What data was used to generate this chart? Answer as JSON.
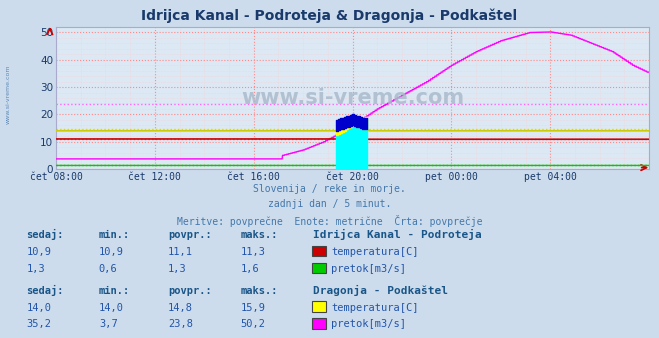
{
  "title": "Idrijca Kanal - Podroteja & Dragonja - Podkaštel",
  "title_color": "#1a3a6b",
  "bg_color": "#ccdcec",
  "plot_bg_color": "#dce8f4",
  "subtitle_lines": [
    "Slovenija / reke in morje.",
    "zadnji dan / 5 minut.",
    "Meritve: povprečne  Enote: metrične  Črta: povprečje"
  ],
  "subtitle_color": "#4477aa",
  "watermark": "www.si-vreme.com",
  "watermark_color": "#aabbcc",
  "xlabel_color": "#1a3a6b",
  "ylabel_color": "#1a3a6b",
  "xtick_labels": [
    "čet 08:00",
    "čet 12:00",
    "čet 16:00",
    "čet 20:00",
    "pet 00:00",
    "pet 04:00"
  ],
  "xtick_positions": [
    0,
    240,
    480,
    720,
    960,
    1200
  ],
  "ytick_labels": [
    "0",
    "10",
    "20",
    "30",
    "40",
    "50"
  ],
  "ytick_positions": [
    0,
    10,
    20,
    30,
    40,
    50
  ],
  "ylim": [
    0,
    52
  ],
  "xlim": [
    0,
    1440
  ],
  "grid_color": "#ff8888",
  "grid_minor_color": "#ffcccc",
  "idrijca_temp_color": "#cc0000",
  "idrijca_temp_avg": 11.1,
  "idrijca_flow_color": "#00cc00",
  "idrijca_flow_avg": 1.3,
  "dragonja_temp_color": "#cccc00",
  "dragonja_temp_avg": 14.8,
  "dragonja_flow_color": "#ff00ff",
  "dragonja_flow_avg": 23.8,
  "idrijca_temp_avg_color": "#ff6666",
  "idrijca_flow_avg_color": "#00bb00",
  "dragonja_temp_avg_color": "#dddd00",
  "dragonja_flow_avg_color": "#ff66ff",
  "fill_cyan_color": "#00ffff",
  "fill_blue_color": "#0000cc",
  "fill_yellow_color": "#ffff00",
  "table_header_color": "#1a5588",
  "table_value_color": "#2255aa",
  "station1_name": "Idrijca Kanal - Podroteja",
  "station2_name": "Dragonja - Podkaštel",
  "s1_sedaj": [
    "10,9",
    "1,3"
  ],
  "s1_min": [
    "10,9",
    "0,6"
  ],
  "s1_povpr": [
    "11,1",
    "1,3"
  ],
  "s1_maks": [
    "11,3",
    "1,6"
  ],
  "s1_labels": [
    "temperatura[C]",
    "pretok[m3/s]"
  ],
  "s1_colors": [
    "#cc0000",
    "#00cc00"
  ],
  "s2_sedaj": [
    "14,0",
    "35,2"
  ],
  "s2_min": [
    "14,0",
    "3,7"
  ],
  "s2_povpr": [
    "14,8",
    "23,8"
  ],
  "s2_maks": [
    "15,9",
    "50,2"
  ],
  "s2_labels": [
    "temperatura[C]",
    "pretok[m3/s]"
  ],
  "s2_colors": [
    "#ffff00",
    "#ff00ff"
  ],
  "arrow_color": "#cc0000",
  "left_label_color": "#4477aa",
  "spine_color": "#aaaacc"
}
